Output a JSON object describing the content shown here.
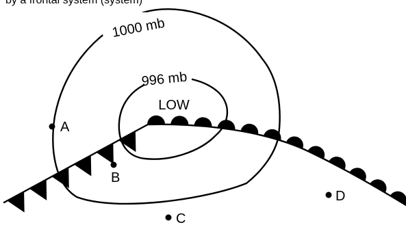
{
  "header_text": "by a frontal system (system)",
  "isobars": [
    {
      "label": "1000 mb"
    },
    {
      "label": "996 mb"
    }
  ],
  "pressure_center": {
    "label": "LOW"
  },
  "stations": [
    {
      "label": "A"
    },
    {
      "label": "B"
    },
    {
      "label": "C"
    },
    {
      "label": "D"
    }
  ],
  "fronts": [
    {
      "type": "cold front",
      "symbol": "triangles"
    },
    {
      "type": "warm front",
      "symbol": "semicircles"
    }
  ],
  "colors": {
    "ink": "#000000",
    "background": "#ffffff"
  }
}
